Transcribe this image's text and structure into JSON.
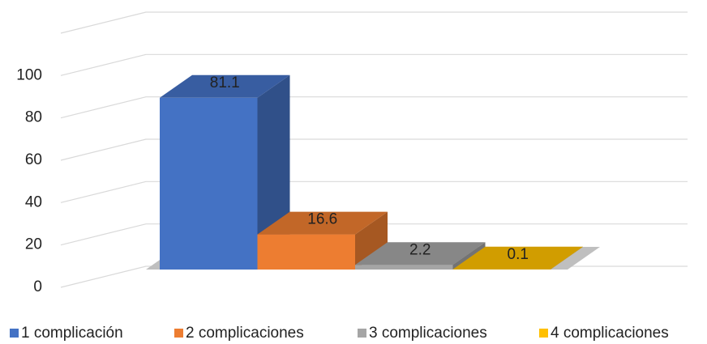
{
  "chart_data": {
    "type": "bar3d",
    "series": [
      {
        "name": "1 complicación",
        "color": "#4472c4",
        "values": [
          81.1
        ]
      },
      {
        "name": "2 complicaciones",
        "color": "#ed7d31",
        "values": [
          16.6
        ]
      },
      {
        "name": "3 complicaciones",
        "color": "#a5a5a5",
        "values": [
          2.2
        ]
      },
      {
        "name": "4 complicaciones",
        "color": "#ffc000",
        "values": [
          0.1
        ]
      }
    ],
    "ylim": [
      0,
      120
    ],
    "yticks": [
      0,
      20,
      40,
      60,
      80,
      100
    ],
    "grid": true,
    "legend": "bottom"
  }
}
